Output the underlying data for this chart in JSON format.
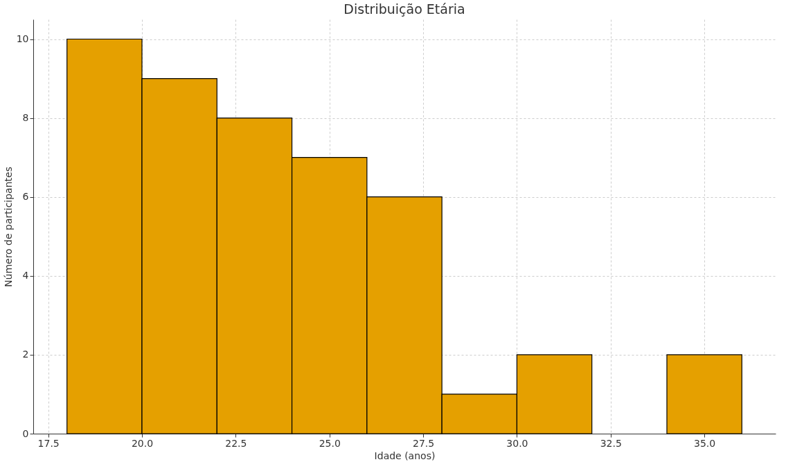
{
  "chart_data": {
    "type": "histogram",
    "title": "Distribuição Etária",
    "xlabel": "Idade (anos)",
    "ylabel": "Número de participantes",
    "bins": [
      18,
      20,
      22,
      24,
      26,
      28,
      30,
      32,
      34,
      36
    ],
    "values": [
      10,
      9,
      8,
      7,
      6,
      1,
      2,
      0,
      2
    ],
    "color": "#e5a000",
    "xlim": [
      17.1,
      36.9
    ],
    "xticks": [
      {
        "value": 17.5,
        "label": "17.5"
      },
      {
        "value": 20,
        "label": "20.0"
      },
      {
        "value": 22.5,
        "label": "22.5"
      },
      {
        "value": 25,
        "label": "25.0"
      },
      {
        "value": 27.5,
        "label": "27.5"
      },
      {
        "value": 30,
        "label": "30.0"
      },
      {
        "value": 32.5,
        "label": "32.5"
      },
      {
        "value": 35,
        "label": "35.0"
      }
    ],
    "ylim": [
      0,
      10.5
    ],
    "yticks": [
      0,
      2,
      4,
      6,
      8,
      10
    ],
    "grid": true
  }
}
